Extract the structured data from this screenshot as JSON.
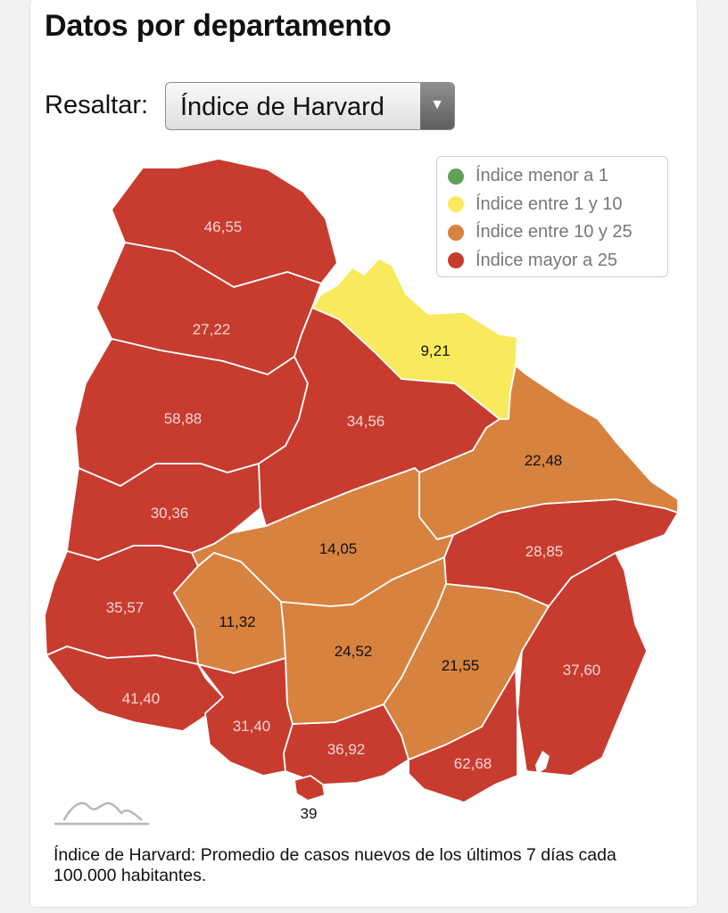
{
  "header": {
    "title": "Datos por departamento"
  },
  "controls": {
    "label": "Resaltar:",
    "selected": "Índice de Harvard"
  },
  "legend": [
    {
      "label": "Índice menor a 1",
      "color": "#5fa15a"
    },
    {
      "label": "Índice entre 1 y 10",
      "color": "#f8ea5c"
    },
    {
      "label": "Índice entre 10 y 25",
      "color": "#d8823f"
    },
    {
      "label": "Índice mayor a 25",
      "color": "#c73c2f"
    }
  ],
  "departments": [
    {
      "value": "46,55",
      "category": "high"
    },
    {
      "value": "27,22",
      "category": "high"
    },
    {
      "value": "58,88",
      "category": "high"
    },
    {
      "value": "30,36",
      "category": "high"
    },
    {
      "value": "35,57",
      "category": "high"
    },
    {
      "value": "41,40",
      "category": "high"
    },
    {
      "value": "31,40",
      "category": "high"
    },
    {
      "value": "36,92",
      "category": "high"
    },
    {
      "value": "62,68",
      "category": "high"
    },
    {
      "value": "37,60",
      "category": "high"
    },
    {
      "value": "28,85",
      "category": "high"
    },
    {
      "value": "34,56",
      "category": "high"
    },
    {
      "value": "9,21",
      "category": "low"
    },
    {
      "value": "22,48",
      "category": "mid"
    },
    {
      "value": "14,05",
      "category": "mid"
    },
    {
      "value": "11,32",
      "category": "mid"
    },
    {
      "value": "24,52",
      "category": "mid"
    },
    {
      "value": "21,55",
      "category": "mid"
    },
    {
      "value": "39",
      "category": "high"
    }
  ],
  "footnote": "Índice de Harvard: Promedio de casos nuevos de los últimos 7 días cada 100.000 habitantes."
}
